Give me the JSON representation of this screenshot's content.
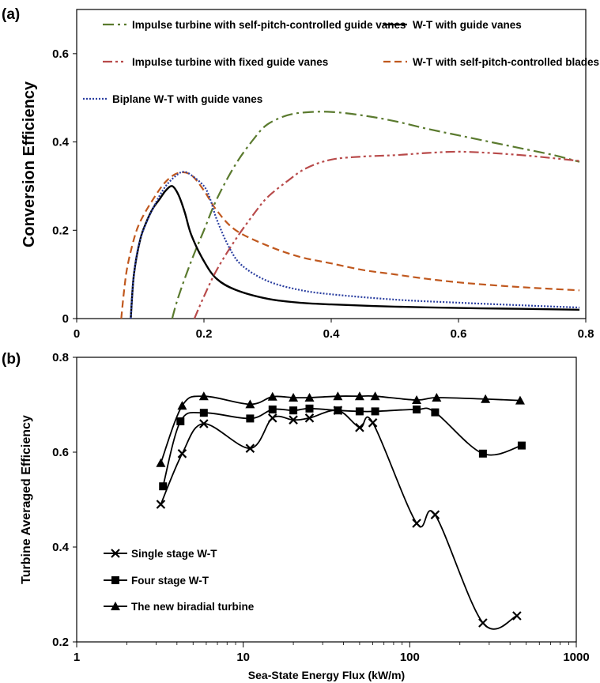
{
  "chart_data": [
    {
      "panel_label": "(a)",
      "type": "line",
      "xlabel": "",
      "ylabel": "Conversion Efficiency",
      "xlim": [
        0,
        0.8
      ],
      "ylim": [
        0,
        0.7
      ],
      "x_ticks": [
        "0",
        "0.2",
        "0.4",
        "0.6",
        "0.8"
      ],
      "y_ticks": [
        "0",
        "0.2",
        "0.4",
        "0.6"
      ],
      "x_tick_values": [
        0,
        0.2,
        0.4,
        0.6,
        0.8
      ],
      "y_tick_values": [
        0,
        0.2,
        0.4,
        0.6
      ],
      "grid": false,
      "legend_position": "top",
      "series": [
        {
          "name": "Impulse turbine with self-pitch-controlled guide vanes",
          "color": "#5a7a2e",
          "dash": "dash-dot",
          "x": [
            0.15,
            0.16,
            0.18,
            0.2,
            0.22,
            0.25,
            0.28,
            0.3,
            0.33,
            0.36,
            0.4,
            0.45,
            0.5,
            0.55,
            0.6,
            0.65,
            0.7,
            0.75,
            0.79
          ],
          "y": [
            0.0,
            0.05,
            0.13,
            0.2,
            0.27,
            0.35,
            0.41,
            0.44,
            0.46,
            0.467,
            0.468,
            0.46,
            0.447,
            0.43,
            0.415,
            0.4,
            0.385,
            0.37,
            0.355
          ]
        },
        {
          "name": "W-T with guide vanes",
          "color": "#000000",
          "dash": "solid",
          "x": [
            0.085,
            0.09,
            0.1,
            0.11,
            0.12,
            0.13,
            0.14,
            0.15,
            0.16,
            0.17,
            0.18,
            0.2,
            0.22,
            0.25,
            0.3,
            0.35,
            0.4,
            0.5,
            0.6,
            0.7,
            0.79
          ],
          "y": [
            0.0,
            0.1,
            0.18,
            0.22,
            0.25,
            0.27,
            0.29,
            0.3,
            0.28,
            0.24,
            0.19,
            0.13,
            0.09,
            0.065,
            0.045,
            0.036,
            0.032,
            0.027,
            0.024,
            0.022,
            0.02
          ]
        },
        {
          "name": "Impulse turbine with fixed guide vanes",
          "color": "#b84a4a",
          "dash": "dash-dot-dot",
          "x": [
            0.185,
            0.2,
            0.22,
            0.25,
            0.28,
            0.3,
            0.33,
            0.36,
            0.4,
            0.45,
            0.5,
            0.55,
            0.6,
            0.65,
            0.7,
            0.75,
            0.79
          ],
          "y": [
            0.0,
            0.05,
            0.11,
            0.18,
            0.24,
            0.275,
            0.31,
            0.34,
            0.36,
            0.367,
            0.37,
            0.375,
            0.378,
            0.375,
            0.37,
            0.363,
            0.357
          ]
        },
        {
          "name": "W-T with self-pitch-controlled blades",
          "color": "#c0581e",
          "dash": "dashed",
          "x": [
            0.07,
            0.075,
            0.08,
            0.09,
            0.1,
            0.12,
            0.14,
            0.16,
            0.18,
            0.2,
            0.22,
            0.25,
            0.3,
            0.35,
            0.4,
            0.45,
            0.5,
            0.55,
            0.6,
            0.65,
            0.7,
            0.75,
            0.79
          ],
          "y": [
            0.0,
            0.07,
            0.12,
            0.18,
            0.22,
            0.27,
            0.31,
            0.33,
            0.325,
            0.29,
            0.245,
            0.2,
            0.165,
            0.14,
            0.125,
            0.11,
            0.1,
            0.09,
            0.082,
            0.076,
            0.071,
            0.067,
            0.064
          ]
        },
        {
          "name": "Biplane W-T with guide vanes",
          "color": "#2b3fa0",
          "dash": "dotted",
          "x": [
            0.085,
            0.09,
            0.1,
            0.12,
            0.14,
            0.16,
            0.17,
            0.18,
            0.2,
            0.21,
            0.22,
            0.24,
            0.26,
            0.3,
            0.35,
            0.4,
            0.5,
            0.6,
            0.7,
            0.79
          ],
          "y": [
            0.0,
            0.1,
            0.18,
            0.25,
            0.3,
            0.328,
            0.332,
            0.325,
            0.3,
            0.27,
            0.225,
            0.16,
            0.12,
            0.085,
            0.065,
            0.055,
            0.043,
            0.036,
            0.03,
            0.025
          ]
        }
      ]
    },
    {
      "panel_label": "(b)",
      "type": "line",
      "xlabel": "Sea-State Energy Flux (kW/m)",
      "ylabel": "Turbine Averaged Efficiency",
      "x_scale": "log",
      "xlim": [
        1,
        1000
      ],
      "ylim": [
        0.2,
        0.8
      ],
      "x_ticks": [
        "1",
        "10",
        "100",
        "1000"
      ],
      "y_ticks": [
        "0.2",
        "0.4",
        "0.6",
        "0.8"
      ],
      "x_tick_values": [
        1,
        10,
        100,
        1000
      ],
      "y_tick_values": [
        0.2,
        0.4,
        0.6,
        0.8
      ],
      "grid": false,
      "legend_position": "bottom-left",
      "series": [
        {
          "name": "Single stage W-T",
          "marker": "x",
          "color": "#000000",
          "x": [
            3.2,
            4.3,
            5.8,
            11,
            15,
            20,
            25,
            37,
            50,
            60,
            110,
            142,
            275,
            440
          ],
          "y": [
            0.49,
            0.597,
            0.66,
            0.608,
            0.672,
            0.668,
            0.672,
            0.688,
            0.652,
            0.662,
            0.45,
            0.468,
            0.24,
            0.255
          ]
        },
        {
          "name": "Four stage W-T",
          "marker": "square",
          "color": "#000000",
          "x": [
            3.3,
            4.2,
            5.8,
            11,
            15,
            20,
            25,
            37,
            50,
            62,
            110,
            142,
            275,
            470
          ],
          "y": [
            0.528,
            0.665,
            0.683,
            0.671,
            0.69,
            0.688,
            0.692,
            0.688,
            0.686,
            0.686,
            0.69,
            0.684,
            0.597,
            0.614
          ]
        },
        {
          "name": "The new biradial turbine",
          "marker": "triangle",
          "color": "#000000",
          "x": [
            3.2,
            4.3,
            5.8,
            11,
            15,
            20,
            25,
            37,
            50,
            62,
            110,
            145,
            285,
            460
          ],
          "y": [
            0.577,
            0.698,
            0.718,
            0.701,
            0.717,
            0.715,
            0.715,
            0.718,
            0.718,
            0.718,
            0.71,
            0.715,
            0.712,
            0.709
          ]
        }
      ]
    }
  ]
}
